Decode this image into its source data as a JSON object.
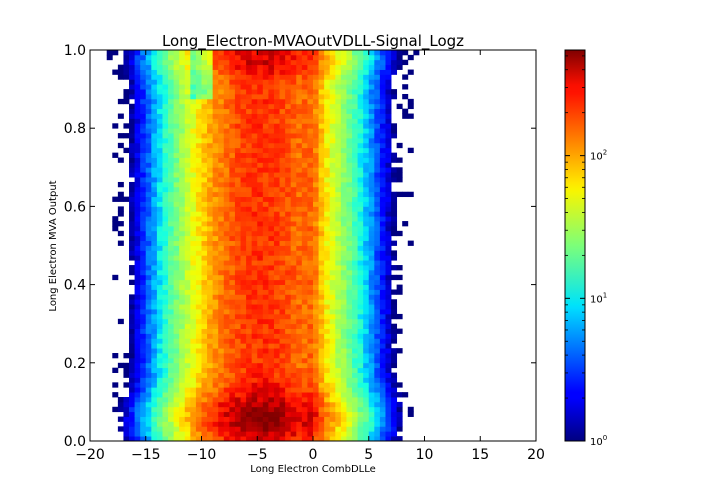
{
  "chart_data": {
    "type": "heatmap",
    "title": "Long_Electron-MVAOutVDLL-Signal_Logz",
    "xlabel": "Long Electron CombDLLe",
    "ylabel": "Long Electron MVA Output",
    "xlim": [
      -20,
      20
    ],
    "ylim": [
      0.0,
      1.0
    ],
    "x_ticks": [
      {
        "value": -20,
        "label": "−20"
      },
      {
        "value": -15,
        "label": "−15"
      },
      {
        "value": -10,
        "label": "−10"
      },
      {
        "value": -5,
        "label": "−5"
      },
      {
        "value": 0,
        "label": "0"
      },
      {
        "value": 5,
        "label": "5"
      },
      {
        "value": 10,
        "label": "10"
      },
      {
        "value": 15,
        "label": "15"
      },
      {
        "value": 20,
        "label": "20"
      }
    ],
    "y_ticks": [
      {
        "value": 0.0,
        "label": "0.0"
      },
      {
        "value": 0.2,
        "label": "0.2"
      },
      {
        "value": 0.4,
        "label": "0.4"
      },
      {
        "value": 0.6,
        "label": "0.6"
      },
      {
        "value": 0.8,
        "label": "0.8"
      },
      {
        "value": 1.0,
        "label": "1.0"
      }
    ],
    "color_scale": "log",
    "colormap": "jet",
    "color_range": [
      1,
      550
    ],
    "colorbar_ticks": [
      {
        "value": 1,
        "base": "10",
        "exp": "0"
      },
      {
        "value": 10,
        "base": "10",
        "exp": "1"
      },
      {
        "value": 100,
        "base": "10",
        "exp": "2"
      }
    ],
    "bins": {
      "x_edges": [
        -20,
        20
      ],
      "y_edges": [
        0.0,
        1.0
      ],
      "nx": 80,
      "ny": 80
    },
    "grid": false,
    "legend": "none"
  }
}
